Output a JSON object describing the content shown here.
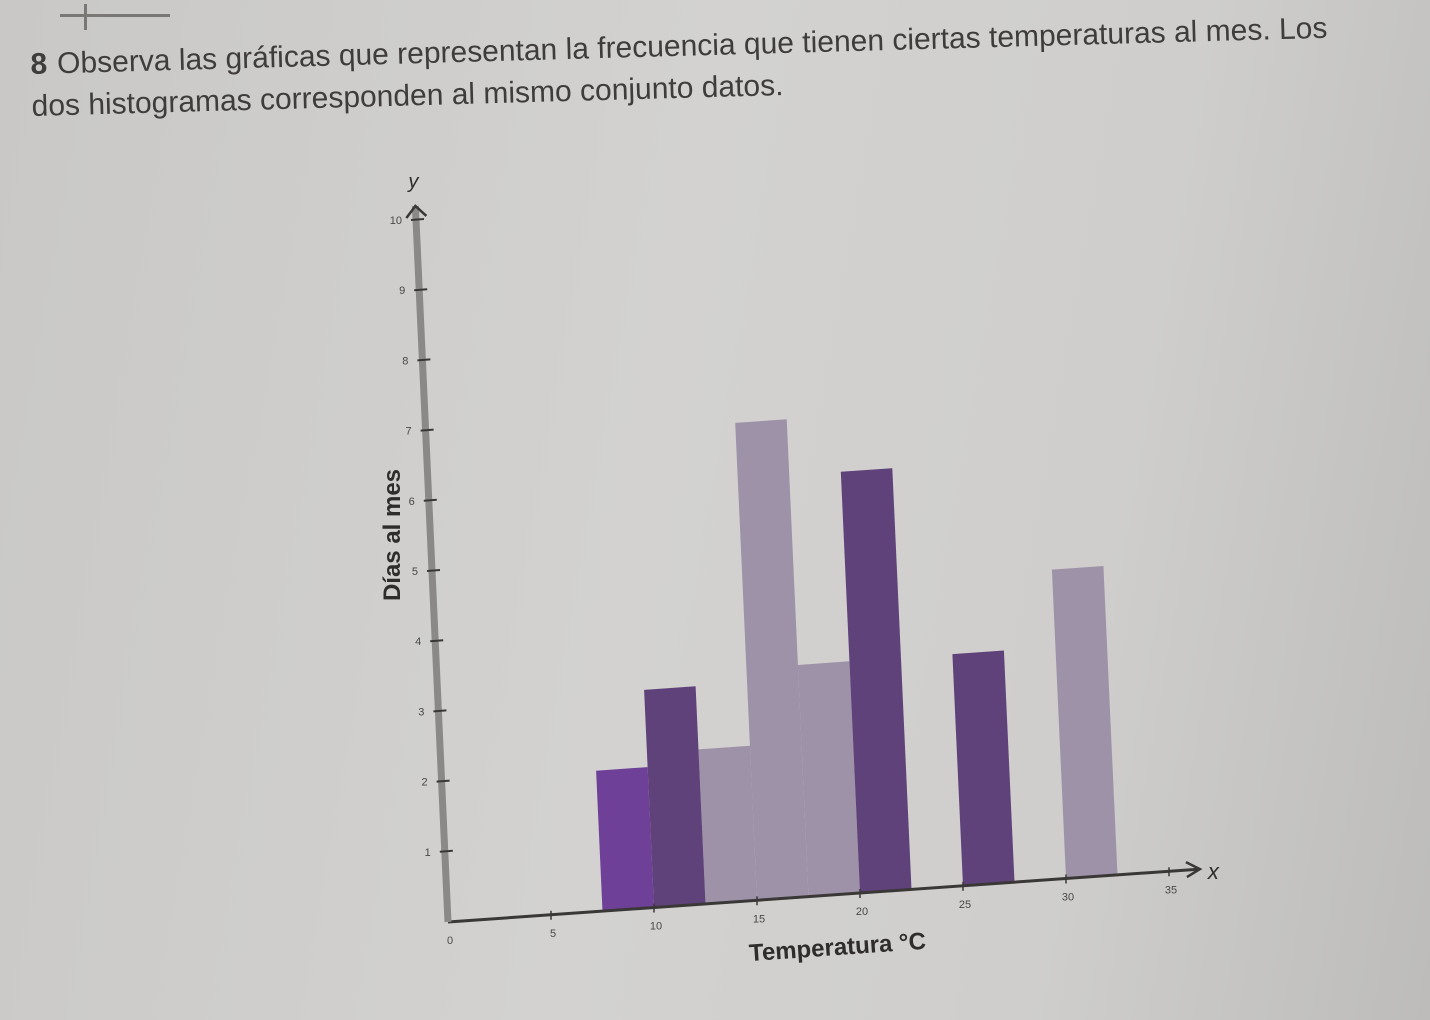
{
  "intro": {
    "bullet": "8",
    "line1": "Observa las gráficas que representan la frecuencia que tienen ciertas temperaturas al mes. Los",
    "line2": "dos histogramas corresponden al mismo conjunto datos."
  },
  "chart_data": {
    "type": "bar",
    "xlabel": "Temperatura °C",
    "ylabel": "Días al mes",
    "x_axis_symbol": "x",
    "y_axis_symbol": "y",
    "xlim": [
      0,
      35
    ],
    "ylim": [
      0,
      10
    ],
    "x_ticks": [
      "0",
      "5",
      "10",
      "15",
      "20",
      "25",
      "30",
      "35"
    ],
    "y_ticks": [
      "1",
      "2",
      "3",
      "4",
      "5",
      "6",
      "7",
      "8",
      "9",
      "10"
    ],
    "series": [
      {
        "color": "#5c3d78",
        "bars": [
          {
            "x_start": 10,
            "x_end": 12.5,
            "value": 3.1
          },
          {
            "x_start": 20,
            "x_end": 22.5,
            "value": 6.0
          },
          {
            "x_start": 25,
            "x_end": 27.5,
            "value": 3.3
          }
        ]
      },
      {
        "color": "#9c90a6",
        "bars": [
          {
            "x_start": 12.5,
            "x_end": 15,
            "value": 2.2
          },
          {
            "x_start": 17.5,
            "x_end": 20,
            "value": 3.3
          },
          {
            "x_start": 15,
            "x_end": 17.5,
            "value": 6.8
          },
          {
            "x_start": 30,
            "x_end": 32.5,
            "value": 4.4
          }
        ]
      },
      {
        "color": "#6a3b96",
        "bars": [
          {
            "x_start": 7.5,
            "x_end": 10,
            "value": 2.0
          }
        ]
      }
    ]
  }
}
